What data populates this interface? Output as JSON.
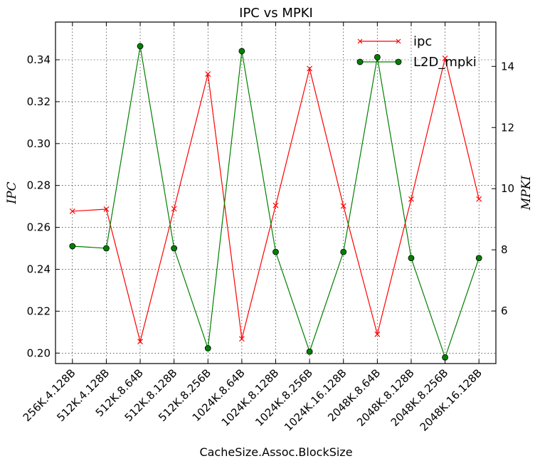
{
  "chart_data": {
    "type": "line",
    "title": "IPC vs MPKI",
    "xlabel": "CacheSize.Assoc.BlockSize",
    "ylabel_left": "IPC",
    "ylabel_right": "MPKI",
    "categories": [
      "256K.4.128B",
      "512K.4.128B",
      "512K.8.64B",
      "512K.8.128B",
      "512K.8.256B",
      "1024K.8.64B",
      "1024K.8.128B",
      "1024K.8.256B",
      "1024K.16.128B",
      "2048K.8.64B",
      "2048K.8.128B",
      "2048K.8.256B",
      "2048K.16.128B"
    ],
    "ylim_left": [
      0.195,
      0.358
    ],
    "ylim_right": [
      4.28,
      15.45
    ],
    "yticks_left": [
      0.2,
      0.22,
      0.24,
      0.26,
      0.28,
      0.3,
      0.32,
      0.34
    ],
    "ytick_labels_left": [
      "0.20",
      "0.22",
      "0.24",
      "0.26",
      "0.28",
      "0.30",
      "0.32",
      "0.34"
    ],
    "yticks_right": [
      6,
      8,
      10,
      12,
      14
    ],
    "ytick_labels_right": [
      "6",
      "8",
      "10",
      "12",
      "14"
    ],
    "grid": true,
    "legend_position": "top-right",
    "series": [
      {
        "name": "ipc",
        "axis": "left",
        "color": "#ff0000",
        "marker": "x",
        "values": [
          0.2677,
          0.2687,
          0.2055,
          0.2689,
          0.3332,
          0.2068,
          0.2705,
          0.3358,
          0.2702,
          0.209,
          0.2735,
          0.3407,
          0.2735
        ]
      },
      {
        "name": "L2D_mpki",
        "axis": "right",
        "color": "#008000",
        "marker": "o",
        "values": [
          8.12,
          8.05,
          14.66,
          8.05,
          4.78,
          14.5,
          7.93,
          4.67,
          7.93,
          14.3,
          7.73,
          4.48,
          7.73
        ]
      }
    ]
  }
}
